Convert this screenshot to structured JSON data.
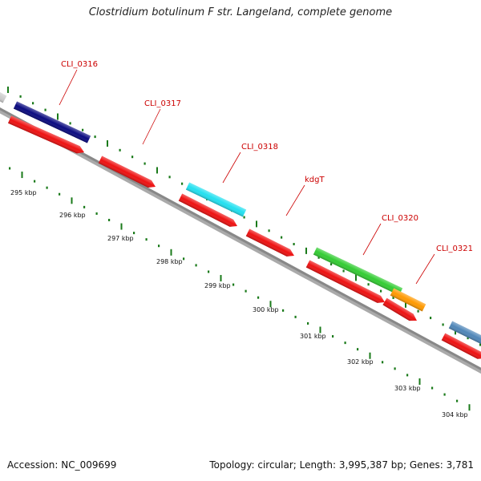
{
  "title": "Clostridium botulinum F str. Langeland, complete genome",
  "footer": {
    "accession": "Accession: NC_009699",
    "topology": "Topology: circular; Length: 3,995,387 bp; Genes: 3,781"
  },
  "colors": {
    "backbone": "#888888",
    "cds": "#ee1111",
    "tick_outer": "#1a7a1a",
    "tick_inner": "#1a7a1a",
    "label": "#cc0000"
  },
  "genes": [
    {
      "name": "CLI_0316",
      "color": "#0a0a80"
    },
    {
      "name": "CLI_0317",
      "color": null
    },
    {
      "name": "CLI_0318",
      "color": "#22e0f0"
    },
    {
      "name": "kdgT",
      "color": null
    },
    {
      "name": "CLI_0320",
      "color": "#33cc33"
    },
    {
      "name": "CLI_0321",
      "color": "#ff9900"
    }
  ],
  "kbp_labels": [
    "295 kbp",
    "296 kbp",
    "297 kbp",
    "298 kbp",
    "299 kbp",
    "300 kbp",
    "301 kbp",
    "302 kbp",
    "303 kbp",
    "304 kbp"
  ]
}
